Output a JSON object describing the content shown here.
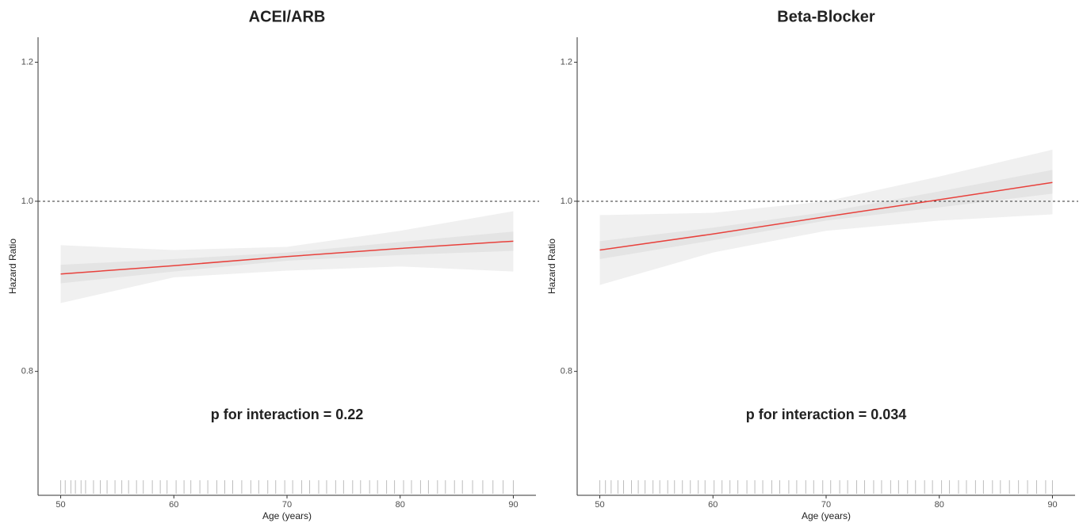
{
  "chart_data": [
    {
      "type": "line",
      "title": "ACEI/ARB",
      "xlabel": "Age (years)",
      "ylabel": "Hazard Ratio",
      "annotation": "p for interaction = 0.22",
      "log_y": true,
      "grid": false,
      "xlim": [
        48,
        92
      ],
      "ylim": [
        0.68,
        1.24
      ],
      "xticks": [
        50,
        60,
        70,
        80,
        90
      ],
      "yticks": [
        0.8,
        {
          "value": 1,
          "label": "1.0"
        },
        1.2
      ],
      "hline": 1,
      "x": [
        50,
        60,
        70,
        80,
        90
      ],
      "line": {
        "color": "#e8413c",
        "values": [
          0.909,
          0.919,
          0.93,
          0.94,
          0.949
        ]
      },
      "bands": [
        {
          "color": "#f0f0f0",
          "lower": [
            0.875,
            0.905,
            0.913,
            0.918,
            0.912
          ],
          "upper": [
            0.944,
            0.938,
            0.942,
            0.962,
            0.987
          ]
        },
        {
          "color": "#e4e4e4",
          "lower": [
            0.898,
            0.912,
            0.925,
            0.932,
            0.937
          ],
          "upper": [
            0.92,
            0.927,
            0.935,
            0.948,
            0.961
          ]
        }
      ],
      "rug_color": "#bdbdbd",
      "rug": [
        50,
        50.4,
        50.9,
        51.3,
        51.8,
        52.2,
        52.9,
        53.5,
        54.1,
        54.8,
        55.4,
        56,
        56.7,
        57.3,
        58.1,
        58.8,
        59.4,
        60.2,
        60.9,
        61.5,
        62.3,
        63,
        63.8,
        64.5,
        65.2,
        66,
        66.8,
        67.5,
        68.3,
        69,
        69.8,
        70.5,
        71.3,
        72,
        72.8,
        73.5,
        74.3,
        75,
        75.8,
        76.5,
        77.3,
        78,
        78.8,
        79.5,
        80.3,
        81,
        81.8,
        82.5,
        83.3,
        84,
        84.8,
        85.5,
        86.4,
        87.3,
        88.2,
        89.1,
        90
      ]
    },
    {
      "type": "line",
      "title": "Beta-Blocker",
      "xlabel": "Age (years)",
      "ylabel": "Hazard Ratio",
      "annotation": "p for interaction = 0.034",
      "log_y": true,
      "grid": false,
      "xlim": [
        48,
        92
      ],
      "ylim": [
        0.68,
        1.24
      ],
      "xticks": [
        50,
        60,
        70,
        80,
        90
      ],
      "yticks": [
        0.8,
        {
          "value": 1,
          "label": "1.0"
        },
        1.2
      ],
      "hline": 1,
      "x": [
        50,
        60,
        70,
        80,
        90
      ],
      "line": {
        "color": "#e8413c",
        "values": [
          0.938,
          0.958,
          0.98,
          1.002,
          1.025
        ]
      },
      "bands": [
        {
          "color": "#f0f0f0",
          "lower": [
            0.896,
            0.935,
            0.962,
            0.975,
            0.983
          ],
          "upper": [
            0.982,
            0.985,
            1.0,
            1.033,
            1.07
          ]
        },
        {
          "color": "#e4e4e4",
          "lower": [
            0.927,
            0.95,
            0.975,
            0.992,
            1.01
          ],
          "upper": [
            0.949,
            0.966,
            0.986,
            1.013,
            1.042
          ]
        }
      ],
      "rug_color": "#bdbdbd",
      "rug": [
        50,
        50.5,
        51,
        51.6,
        52.1,
        52.8,
        53.4,
        54,
        54.7,
        55.3,
        56,
        56.6,
        57.3,
        58,
        58.7,
        59.3,
        60.1,
        60.8,
        61.5,
        62.2,
        63,
        63.7,
        64.4,
        65.2,
        65.9,
        66.7,
        67.4,
        68.2,
        68.9,
        69.7,
        70.4,
        71.2,
        71.9,
        72.7,
        73.4,
        74.2,
        74.9,
        75.7,
        76.4,
        77.2,
        77.9,
        78.7,
        79.4,
        80.2,
        80.9,
        81.7,
        82.4,
        83.2,
        83.9,
        84.7,
        85.4,
        86.2,
        87,
        87.8,
        88.6,
        89.4,
        90
      ]
    }
  ]
}
